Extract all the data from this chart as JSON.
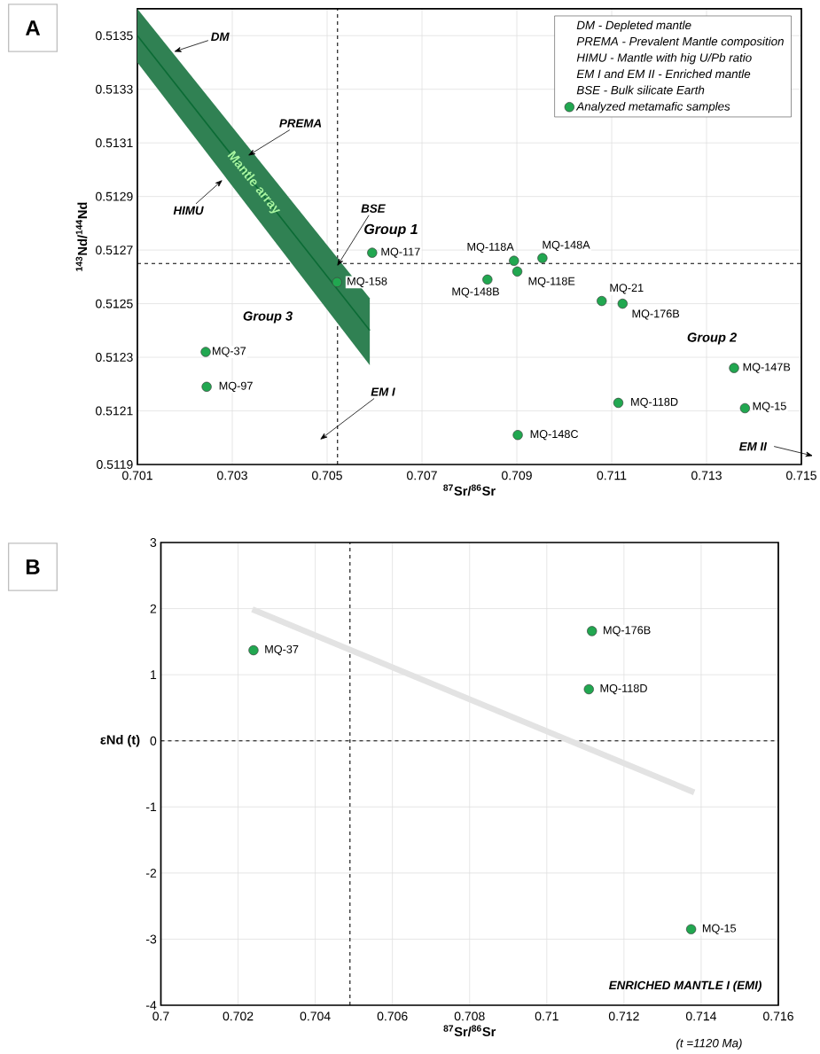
{
  "chart_data": [
    {
      "type": "scatter",
      "title": "A",
      "xlabel": "$^{87}$Sr/$^{86}$Sr",
      "ylabel": "$^{143}$Nd/$^{144}$Nd",
      "xlim": [
        0.701,
        0.715
      ],
      "ylim": [
        0.5119,
        0.5136
      ],
      "xticks": [
        0.701,
        0.703,
        0.705,
        0.707,
        0.709,
        0.711,
        0.713,
        0.715
      ],
      "yticks": [
        0.5119,
        0.5121,
        0.5123,
        0.5125,
        0.5127,
        0.5129,
        0.5131,
        0.5133,
        0.5135
      ],
      "grid": true,
      "legend": "top right",
      "marker": "circle",
      "series": [
        {
          "type": "line",
          "name": "Mantle array",
          "color": "#0b6b35",
          "marker": "none",
          "x": [
            0.701,
            0.7059
          ],
          "values": [
            0.5135,
            0.5124
          ],
          "lower": [
            0.5134,
            0.51227
          ],
          "upper": [
            0.5136,
            0.51252
          ]
        },
        {
          "name": "Analyzed metamafic samples",
          "color": "#21a750",
          "x": [
            0.70595,
            0.70521,
            0.70244,
            0.70246,
            0.70894,
            0.70954,
            0.70901,
            0.70838,
            0.71079,
            0.71123,
            0.71358,
            0.71114,
            0.71381,
            0.70902
          ],
          "values": [
            0.51269,
            0.51258,
            0.51232,
            0.51219,
            0.51266,
            0.51267,
            0.51262,
            0.51259,
            0.51251,
            0.5125,
            0.51226,
            0.51213,
            0.51211,
            0.51201
          ],
          "value_labels": [
            "MQ-117",
            "MQ-158",
            "MQ-37",
            "MQ-97",
            "MQ-118A",
            "MQ-148A",
            "MQ-118E",
            "MQ-148B",
            "MQ-21",
            "MQ-176B",
            "MQ-147B",
            "MQ-118D",
            "MQ-15",
            "MQ-148C"
          ]
        }
      ],
      "ref_lines": [
        {
          "axis": "x",
          "value": 0.70522,
          "line_style": "dashed"
        },
        {
          "axis": "y",
          "value": 0.51265,
          "line_style": "dashed"
        }
      ],
      "annotations": [
        {
          "text": "DM",
          "x": 0.70177,
          "y": 0.51344
        },
        "PREMA",
        "HIMU",
        {
          "text": "BSE",
          "x": 0.70521,
          "y": 0.51264
        },
        "EM I",
        "EM II",
        "Group 1",
        "Group 2",
        "Group 3",
        "DM - Depleted mantle",
        "PREMA - Prevalent Mantle composition",
        "HIMU - Mantle with hig U/Pb ratio",
        "EM I  and EM II - Enriched mantle",
        "BSE - Bulk silicate Earth"
      ]
    },
    {
      "type": "scatter",
      "title": "B",
      "xlabel": "$^{87}$Sr/$^{86}$Sr",
      "ylabel": "εNd (t)",
      "xlim": [
        0.7,
        0.716
      ],
      "ylim": [
        -4,
        3
      ],
      "xticks": [
        0.7,
        0.702,
        0.704,
        0.706,
        0.708,
        0.71,
        0.712,
        0.714,
        0.716
      ],
      "yticks": [
        -4,
        -3,
        -2,
        -1,
        0,
        1,
        2,
        3
      ],
      "grid": true,
      "marker": "circle",
      "series": [
        {
          "type": "line",
          "color": "#e3e3e3",
          "marker": "none",
          "x": [
            0.70237,
            0.71382
          ],
          "values": [
            1.99,
            -0.78
          ]
        },
        {
          "color": "#21a750",
          "x": [
            0.7024,
            0.71117,
            0.71109,
            0.71374
          ],
          "values": [
            1.37,
            1.66,
            0.78,
            -2.85
          ],
          "value_labels": [
            "MQ-37",
            "MQ-176B",
            "MQ-118D",
            "MQ-15"
          ]
        }
      ],
      "ref_lines": [
        {
          "axis": "x",
          "value": 0.7049,
          "line_style": "dashed"
        },
        {
          "axis": "y",
          "value": 0,
          "line_style": "dashed"
        }
      ],
      "annotations": [
        "ENRICHED MANTLE I (EMI)",
        "(t =1120 Ma)"
      ]
    }
  ]
}
